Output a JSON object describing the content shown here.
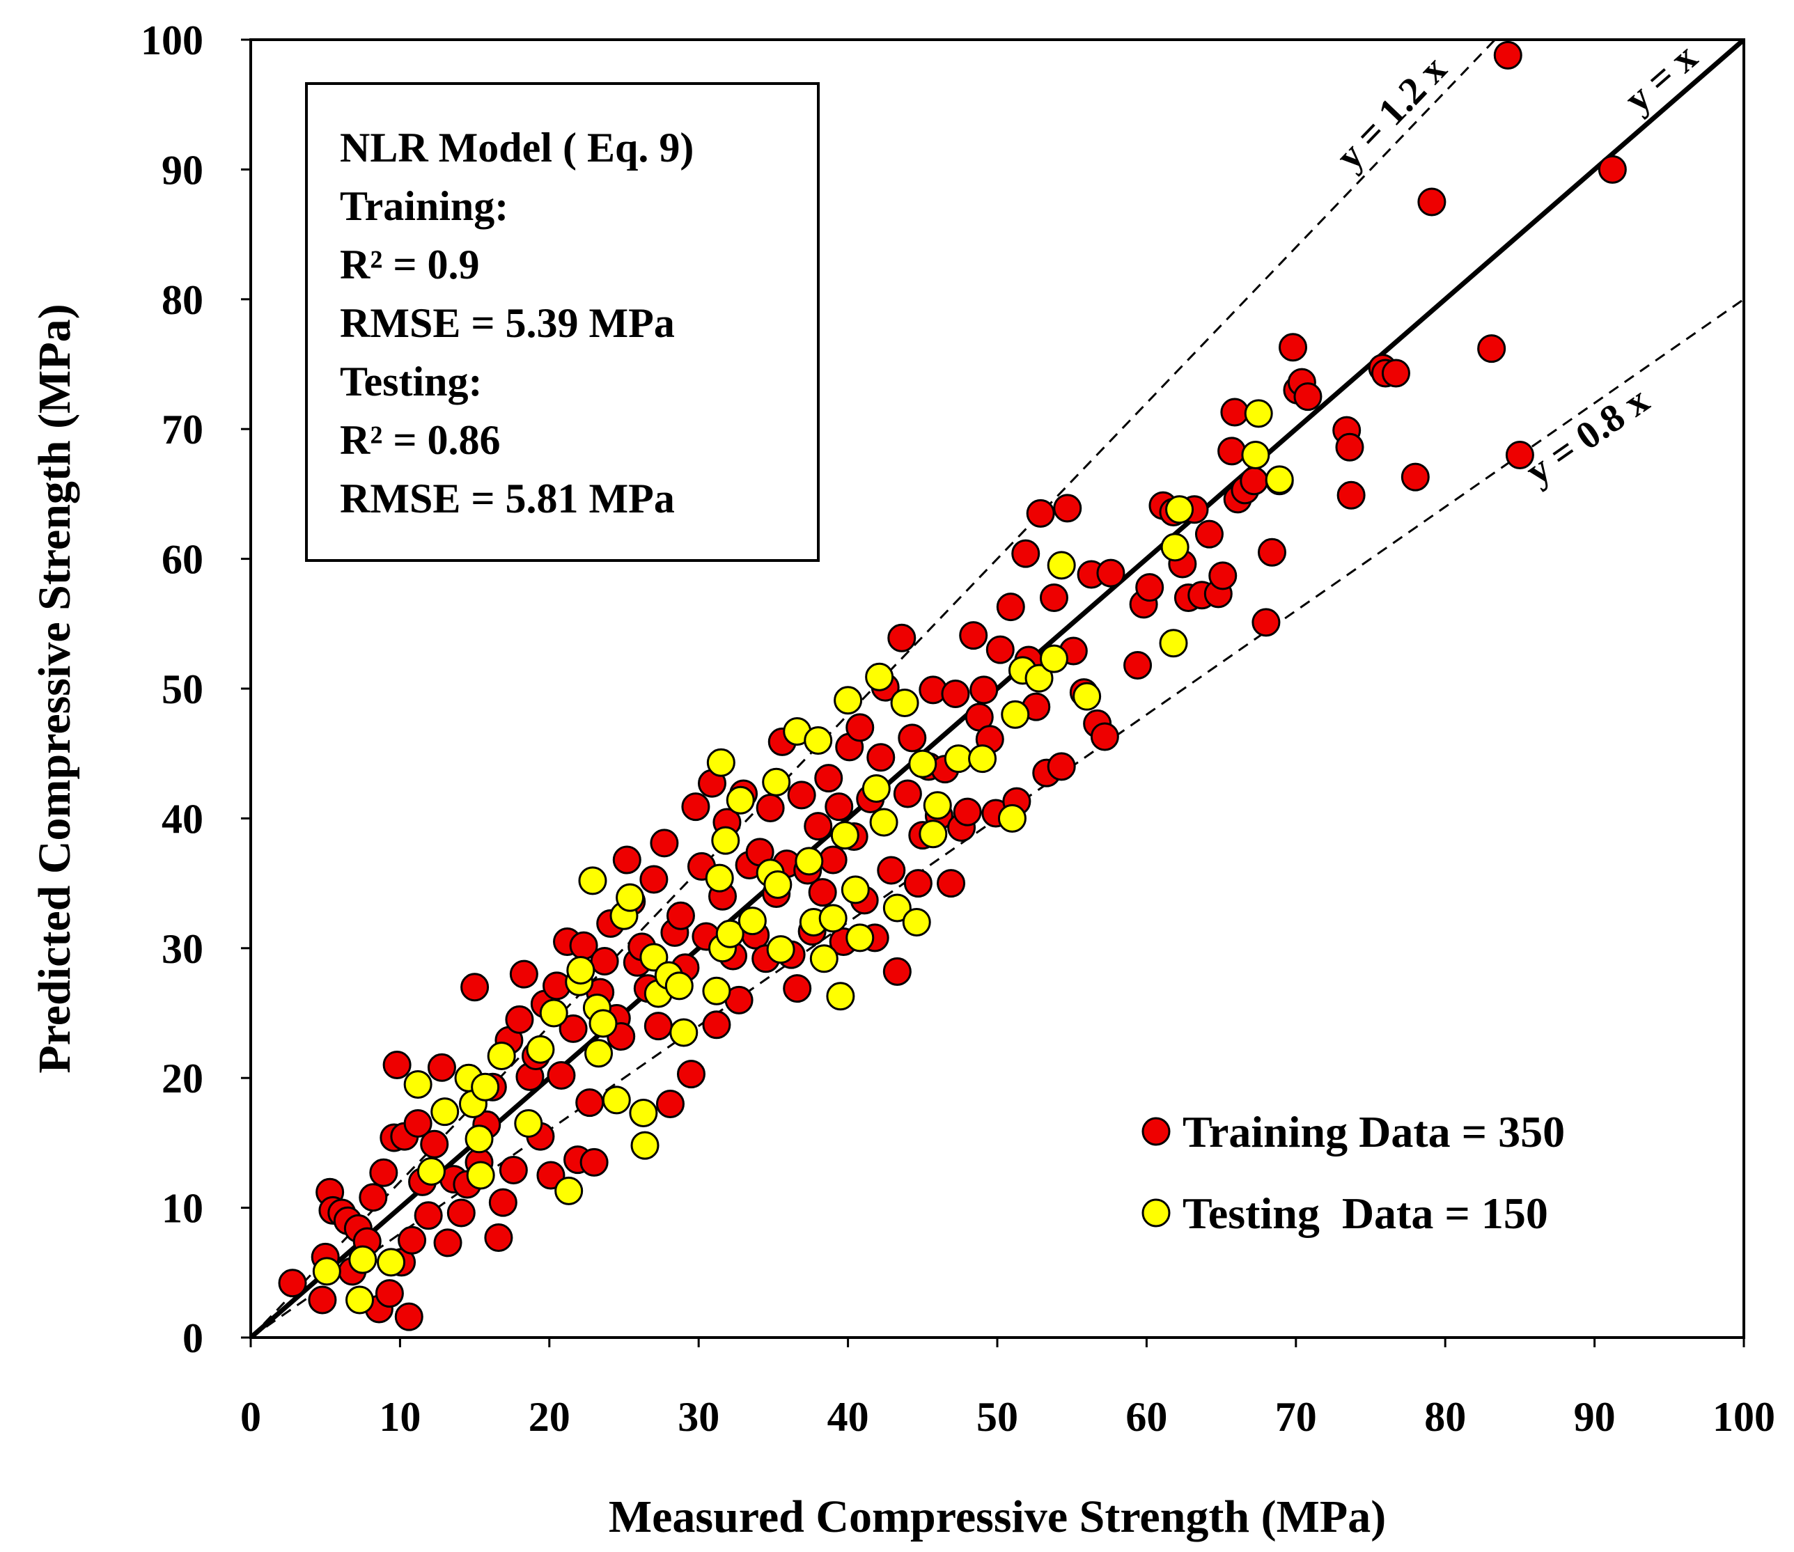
{
  "chart_data": {
    "type": "scatter",
    "title": "",
    "xlabel": "Measured Compressive Strength (MPa)",
    "ylabel": "Predicted Compressive Strength (MPa)",
    "xlim": [
      0,
      100
    ],
    "ylim": [
      0,
      100
    ],
    "xticks": [
      0,
      10,
      20,
      30,
      40,
      50,
      60,
      70,
      80,
      90,
      100
    ],
    "yticks": [
      0,
      10,
      20,
      30,
      40,
      50,
      60,
      70,
      80,
      90,
      100
    ],
    "grid": false,
    "stats_box": {
      "lines": [
        "NLR Model ( Eq. 9)",
        "Training:",
        "R² = 0.9",
        "RMSE = 5.39 MPa",
        "Testing:",
        "R² = 0.86",
        "RMSE = 5.81 MPa"
      ]
    },
    "reference_lines": [
      {
        "name": "y = x",
        "slope": 1.0,
        "style": "solid",
        "label": "y = x"
      },
      {
        "name": "y = 1.2 x",
        "slope": 1.2,
        "style": "dashed",
        "label": "y = 1.2 x"
      },
      {
        "name": "y = 0.8 x",
        "slope": 0.8,
        "style": "dashed",
        "label": "y = 0.8 x"
      }
    ],
    "legend": {
      "position": "bottom-right",
      "entries": [
        {
          "label": "Training Data = 350",
          "color": "#ee0000"
        },
        {
          "label": "Testing  Data = 150",
          "color": "#ffff00"
        }
      ]
    },
    "series": [
      {
        "name": "Training Data",
        "color": "#ee0000",
        "points": [
          [
            2.8,
            4.2
          ],
          [
            4.8,
            2.9
          ],
          [
            5.0,
            6.2
          ],
          [
            5.3,
            11.2
          ],
          [
            5.5,
            9.8
          ],
          [
            6.1,
            9.6
          ],
          [
            6.5,
            9.0
          ],
          [
            6.8,
            5.1
          ],
          [
            7.2,
            8.4
          ],
          [
            7.8,
            7.4
          ],
          [
            8.2,
            10.8
          ],
          [
            8.6,
            2.2
          ],
          [
            8.9,
            12.7
          ],
          [
            9.3,
            3.4
          ],
          [
            9.6,
            15.4
          ],
          [
            9.8,
            21.0
          ],
          [
            10.1,
            5.8
          ],
          [
            10.3,
            15.5
          ],
          [
            10.6,
            1.6
          ],
          [
            10.8,
            7.5
          ],
          [
            11.2,
            16.5
          ],
          [
            11.5,
            12.0
          ],
          [
            11.9,
            9.4
          ],
          [
            12.3,
            14.9
          ],
          [
            12.8,
            20.8
          ],
          [
            13.2,
            7.3
          ],
          [
            13.6,
            12.2
          ],
          [
            14.1,
            9.6
          ],
          [
            14.5,
            11.8
          ],
          [
            15.0,
            27.0
          ],
          [
            15.3,
            13.5
          ],
          [
            15.8,
            16.4
          ],
          [
            16.2,
            19.3
          ],
          [
            16.6,
            7.7
          ],
          [
            16.9,
            10.4
          ],
          [
            17.3,
            22.9
          ],
          [
            17.6,
            12.9
          ],
          [
            18.0,
            24.5
          ],
          [
            18.3,
            28.0
          ],
          [
            18.7,
            20.1
          ],
          [
            19.1,
            21.7
          ],
          [
            19.4,
            15.5
          ],
          [
            19.7,
            25.7
          ],
          [
            20.1,
            12.5
          ],
          [
            20.5,
            27.1
          ],
          [
            20.8,
            20.2
          ],
          [
            21.2,
            30.5
          ],
          [
            21.6,
            23.8
          ],
          [
            21.9,
            13.7
          ],
          [
            22.3,
            30.2
          ],
          [
            22.7,
            18.1
          ],
          [
            23.0,
            13.5
          ],
          [
            23.4,
            26.6
          ],
          [
            23.7,
            29.0
          ],
          [
            24.1,
            31.9
          ],
          [
            24.5,
            24.6
          ],
          [
            24.8,
            23.2
          ],
          [
            25.2,
            36.8
          ],
          [
            25.5,
            33.6
          ],
          [
            25.9,
            28.9
          ],
          [
            26.2,
            30.1
          ],
          [
            26.6,
            26.9
          ],
          [
            27.0,
            35.3
          ],
          [
            27.3,
            24.0
          ],
          [
            27.7,
            38.1
          ],
          [
            28.1,
            18.0
          ],
          [
            28.4,
            31.2
          ],
          [
            28.8,
            32.5
          ],
          [
            29.1,
            28.5
          ],
          [
            29.5,
            20.3
          ],
          [
            29.8,
            40.9
          ],
          [
            30.2,
            36.3
          ],
          [
            30.5,
            30.9
          ],
          [
            30.9,
            42.7
          ],
          [
            31.2,
            24.1
          ],
          [
            31.6,
            34.0
          ],
          [
            31.9,
            39.7
          ],
          [
            32.3,
            29.4
          ],
          [
            32.7,
            26.0
          ],
          [
            33.0,
            41.9
          ],
          [
            33.4,
            36.4
          ],
          [
            33.8,
            31.0
          ],
          [
            34.1,
            37.4
          ],
          [
            34.5,
            29.2
          ],
          [
            34.8,
            40.8
          ],
          [
            35.2,
            34.2
          ],
          [
            35.6,
            45.9
          ],
          [
            35.9,
            36.5
          ],
          [
            36.2,
            29.5
          ],
          [
            36.6,
            26.9
          ],
          [
            36.9,
            41.8
          ],
          [
            37.3,
            36.0
          ],
          [
            37.6,
            31.3
          ],
          [
            38.0,
            39.4
          ],
          [
            38.3,
            34.3
          ],
          [
            38.7,
            43.1
          ],
          [
            39.0,
            36.8
          ],
          [
            39.4,
            40.9
          ],
          [
            39.7,
            30.5
          ],
          [
            40.1,
            45.5
          ],
          [
            40.4,
            38.6
          ],
          [
            40.8,
            47.0
          ],
          [
            41.1,
            33.7
          ],
          [
            41.5,
            41.5
          ],
          [
            41.8,
            30.8
          ],
          [
            42.2,
            44.7
          ],
          [
            42.5,
            50.1
          ],
          [
            42.9,
            36.0
          ],
          [
            43.3,
            28.2
          ],
          [
            43.6,
            53.9
          ],
          [
            44.0,
            41.9
          ],
          [
            44.3,
            46.2
          ],
          [
            44.7,
            35.0
          ],
          [
            45.0,
            38.7
          ],
          [
            45.4,
            44.0
          ],
          [
            45.7,
            49.9
          ],
          [
            46.1,
            40.2
          ],
          [
            46.5,
            43.8
          ],
          [
            46.9,
            35.0
          ],
          [
            47.2,
            49.6
          ],
          [
            47.6,
            39.3
          ],
          [
            48.0,
            40.5
          ],
          [
            48.4,
            54.1
          ],
          [
            48.8,
            47.8
          ],
          [
            49.1,
            49.9
          ],
          [
            49.5,
            46.1
          ],
          [
            49.9,
            40.4
          ],
          [
            50.2,
            53.0
          ],
          [
            50.9,
            56.3
          ],
          [
            51.3,
            41.3
          ],
          [
            51.9,
            60.4
          ],
          [
            52.1,
            52.2
          ],
          [
            52.6,
            48.6
          ],
          [
            52.9,
            63.5
          ],
          [
            53.3,
            43.5
          ],
          [
            53.8,
            57.0
          ],
          [
            54.3,
            44.0
          ],
          [
            54.7,
            63.9
          ],
          [
            55.1,
            52.9
          ],
          [
            55.8,
            49.7
          ],
          [
            56.3,
            58.8
          ],
          [
            56.7,
            47.3
          ],
          [
            57.2,
            46.3
          ],
          [
            57.6,
            58.9
          ],
          [
            59.4,
            51.8
          ],
          [
            59.8,
            56.5
          ],
          [
            60.2,
            57.8
          ],
          [
            61.1,
            64.1
          ],
          [
            61.8,
            63.6
          ],
          [
            62.4,
            59.6
          ],
          [
            62.8,
            57.0
          ],
          [
            63.2,
            63.8
          ],
          [
            63.7,
            57.2
          ],
          [
            64.2,
            61.9
          ],
          [
            64.8,
            57.3
          ],
          [
            65.1,
            58.7
          ],
          [
            65.7,
            68.3
          ],
          [
            65.9,
            71.3
          ],
          [
            66.1,
            64.6
          ],
          [
            66.6,
            65.3
          ],
          [
            67.2,
            66.0
          ],
          [
            68.0,
            55.1
          ],
          [
            68.4,
            60.5
          ],
          [
            68.9,
            66.0
          ],
          [
            69.8,
            76.3
          ],
          [
            70.1,
            73.0
          ],
          [
            70.4,
            73.6
          ],
          [
            70.8,
            72.5
          ],
          [
            73.4,
            69.9
          ],
          [
            73.6,
            68.6
          ],
          [
            73.7,
            64.9
          ],
          [
            75.8,
            74.7
          ],
          [
            76.0,
            74.3
          ],
          [
            76.7,
            74.3
          ],
          [
            78.0,
            66.3
          ],
          [
            79.1,
            87.5
          ],
          [
            83.1,
            76.2
          ],
          [
            84.2,
            98.8
          ],
          [
            85.0,
            68.0
          ],
          [
            91.2,
            90.0
          ]
        ]
      },
      {
        "name": "Testing Data",
        "color": "#ffff00",
        "points": [
          [
            5.1,
            5.1
          ],
          [
            7.3,
            2.9
          ],
          [
            7.5,
            6.0
          ],
          [
            9.4,
            5.8
          ],
          [
            11.2,
            19.5
          ],
          [
            12.1,
            12.8
          ],
          [
            13.0,
            17.4
          ],
          [
            14.6,
            20.0
          ],
          [
            14.9,
            18.0
          ],
          [
            15.3,
            15.3
          ],
          [
            15.4,
            12.5
          ],
          [
            15.7,
            19.3
          ],
          [
            16.8,
            21.7
          ],
          [
            18.6,
            16.5
          ],
          [
            19.4,
            22.2
          ],
          [
            20.3,
            25.0
          ],
          [
            21.3,
            11.3
          ],
          [
            22.0,
            27.4
          ],
          [
            22.1,
            28.3
          ],
          [
            22.9,
            35.2
          ],
          [
            23.2,
            25.4
          ],
          [
            23.3,
            21.9
          ],
          [
            23.6,
            24.2
          ],
          [
            24.5,
            18.3
          ],
          [
            25.0,
            32.5
          ],
          [
            25.4,
            33.9
          ],
          [
            26.3,
            17.3
          ],
          [
            26.4,
            14.8
          ],
          [
            27.0,
            29.3
          ],
          [
            27.3,
            26.5
          ],
          [
            28.0,
            27.9
          ],
          [
            28.7,
            27.1
          ],
          [
            29.0,
            23.5
          ],
          [
            31.2,
            26.7
          ],
          [
            31.4,
            35.4
          ],
          [
            31.5,
            44.3
          ],
          [
            31.6,
            30.0
          ],
          [
            31.8,
            38.3
          ],
          [
            32.1,
            31.1
          ],
          [
            32.8,
            41.4
          ],
          [
            33.6,
            32.1
          ],
          [
            34.8,
            35.8
          ],
          [
            35.2,
            42.8
          ],
          [
            35.3,
            34.9
          ],
          [
            35.5,
            29.9
          ],
          [
            36.6,
            46.7
          ],
          [
            37.4,
            36.7
          ],
          [
            37.7,
            32.0
          ],
          [
            38.0,
            46.0
          ],
          [
            38.4,
            29.2
          ],
          [
            39.0,
            32.3
          ],
          [
            39.5,
            26.3
          ],
          [
            39.8,
            38.7
          ],
          [
            40.0,
            49.1
          ],
          [
            40.5,
            34.5
          ],
          [
            40.8,
            30.8
          ],
          [
            41.9,
            42.3
          ],
          [
            42.1,
            50.9
          ],
          [
            42.4,
            39.7
          ],
          [
            43.3,
            33.1
          ],
          [
            43.8,
            48.9
          ],
          [
            44.6,
            32.0
          ],
          [
            45.0,
            44.2
          ],
          [
            45.7,
            38.8
          ],
          [
            46.0,
            41.0
          ],
          [
            47.4,
            44.6
          ],
          [
            49.0,
            44.6
          ],
          [
            51.0,
            40.0
          ],
          [
            51.2,
            48.0
          ],
          [
            51.7,
            51.4
          ],
          [
            52.8,
            50.8
          ],
          [
            53.8,
            52.3
          ],
          [
            54.3,
            59.5
          ],
          [
            56.0,
            49.4
          ],
          [
            61.8,
            53.5
          ],
          [
            61.9,
            60.9
          ],
          [
            62.2,
            63.8
          ],
          [
            67.3,
            68.0
          ],
          [
            67.5,
            71.2
          ],
          [
            68.9,
            66.1
          ]
        ]
      }
    ]
  }
}
